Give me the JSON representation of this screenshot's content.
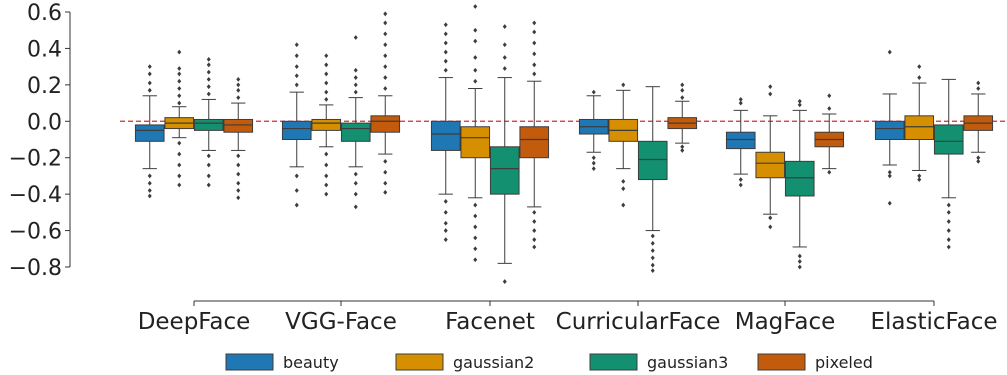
{
  "chart_data": {
    "type": "box",
    "categories": [
      "DeepFace",
      "VGG-Face",
      "Facenet",
      "CurricularFace",
      "MagFace",
      "ElasticFace"
    ],
    "ylim": [
      -0.8,
      0.6
    ],
    "yticks": [
      0.6,
      0.4,
      0.2,
      0.0,
      -0.2,
      -0.4,
      -0.6,
      -0.8
    ],
    "ytick_labels": [
      "0.6",
      "0.4",
      "0.2",
      "0.0",
      "−0.2",
      "−0.4",
      "−0.6",
      "−0.8"
    ],
    "reference_line": 0.0,
    "legend_position": "bottom",
    "series": [
      {
        "name": "beauty",
        "color": "#1f77b4",
        "boxes": [
          {
            "whislo": -0.26,
            "q1": -0.11,
            "med": -0.05,
            "q3": -0.02,
            "whishi": 0.14,
            "outliers": [
              0.17,
              0.21,
              0.26,
              0.3,
              -0.3,
              -0.34,
              -0.38,
              -0.41
            ]
          },
          {
            "whislo": -0.25,
            "q1": -0.1,
            "med": -0.04,
            "q3": 0.0,
            "whishi": 0.16,
            "outliers": [
              0.2,
              0.25,
              0.3,
              0.36,
              0.42,
              -0.3,
              -0.38,
              -0.46
            ]
          },
          {
            "whislo": -0.4,
            "q1": -0.16,
            "med": -0.07,
            "q3": 0.0,
            "whishi": 0.24,
            "outliers": [
              0.28,
              0.33,
              0.38,
              0.43,
              0.48,
              0.53,
              -0.44,
              -0.5,
              -0.56,
              -0.6,
              -0.65
            ]
          },
          {
            "whislo": -0.17,
            "q1": -0.07,
            "med": -0.03,
            "q3": 0.01,
            "whishi": 0.14,
            "outliers": [
              0.16,
              -0.2,
              -0.23,
              -0.26
            ]
          },
          {
            "whislo": -0.29,
            "q1": -0.15,
            "med": -0.1,
            "q3": -0.06,
            "whishi": 0.06,
            "outliers": [
              0.1,
              0.12,
              -0.32,
              -0.35
            ]
          },
          {
            "whislo": -0.24,
            "q1": -0.1,
            "med": -0.04,
            "q3": 0.0,
            "whishi": 0.15,
            "outliers": [
              0.38,
              -0.28,
              -0.3,
              -0.45
            ]
          }
        ]
      },
      {
        "name": "gaussian2",
        "color": "#d68f00",
        "boxes": [
          {
            "whislo": -0.09,
            "q1": -0.04,
            "med": -0.01,
            "q3": 0.02,
            "whishi": 0.08,
            "outliers": [
              0.1,
              0.14,
              0.18,
              0.22,
              0.26,
              0.29,
              0.38,
              -0.12,
              -0.18,
              -0.24,
              -0.3,
              -0.35
            ]
          },
          {
            "whislo": -0.14,
            "q1": -0.05,
            "med": -0.01,
            "q3": 0.01,
            "whishi": 0.09,
            "outliers": [
              0.12,
              0.16,
              0.21,
              0.26,
              0.31,
              0.36,
              -0.18,
              -0.24,
              -0.3,
              -0.35,
              -0.4
            ]
          },
          {
            "whislo": -0.42,
            "q1": -0.2,
            "med": -0.09,
            "q3": -0.03,
            "whishi": 0.18,
            "outliers": [
              0.22,
              0.28,
              0.35,
              0.44,
              0.5,
              0.63,
              -0.46,
              -0.52,
              -0.58,
              -0.64,
              -0.7,
              -0.76
            ]
          },
          {
            "whislo": -0.26,
            "q1": -0.11,
            "med": -0.05,
            "q3": 0.01,
            "whishi": 0.17,
            "outliers": [
              0.2,
              -0.33,
              -0.37,
              -0.46
            ]
          },
          {
            "whislo": -0.51,
            "q1": -0.31,
            "med": -0.23,
            "q3": -0.17,
            "whishi": 0.03,
            "outliers": [
              0.15,
              0.19,
              -0.53,
              -0.58
            ]
          },
          {
            "whislo": -0.27,
            "q1": -0.1,
            "med": -0.03,
            "q3": 0.03,
            "whishi": 0.21,
            "outliers": [
              0.24,
              0.3,
              -0.3,
              -0.32
            ]
          }
        ]
      },
      {
        "name": "gaussian3",
        "color": "#12906f",
        "boxes": [
          {
            "whislo": -0.16,
            "q1": -0.05,
            "med": -0.01,
            "q3": 0.01,
            "whishi": 0.12,
            "outliers": [
              0.15,
              0.19,
              0.23,
              0.27,
              0.31,
              0.34,
              -0.19,
              -0.24,
              -0.3,
              -0.35
            ]
          },
          {
            "whislo": -0.25,
            "q1": -0.11,
            "med": -0.04,
            "q3": -0.01,
            "whishi": 0.13,
            "outliers": [
              0.16,
              0.2,
              0.24,
              0.28,
              0.46,
              -0.29,
              -0.34,
              -0.4,
              -0.47
            ]
          },
          {
            "whislo": -0.78,
            "q1": -0.4,
            "med": -0.26,
            "q3": -0.14,
            "whishi": 0.24,
            "outliers": [
              0.29,
              0.35,
              0.42,
              0.52,
              -0.88
            ]
          },
          {
            "whislo": -0.6,
            "q1": -0.32,
            "med": -0.21,
            "q3": -0.11,
            "whishi": 0.19,
            "outliers": [
              -0.63,
              -0.67,
              -0.71,
              -0.75,
              -0.79,
              -0.82
            ]
          },
          {
            "whislo": -0.69,
            "q1": -0.41,
            "med": -0.31,
            "q3": -0.22,
            "whishi": 0.06,
            "outliers": [
              0.09,
              0.11,
              -0.74,
              -0.77,
              -0.8
            ]
          },
          {
            "whislo": -0.42,
            "q1": -0.18,
            "med": -0.11,
            "q3": -0.02,
            "whishi": 0.23,
            "outliers": [
              -0.46,
              -0.5,
              -0.55,
              -0.6,
              -0.65,
              -0.69
            ]
          }
        ]
      },
      {
        "name": "pixeled",
        "color": "#c25b0b",
        "boxes": [
          {
            "whislo": -0.16,
            "q1": -0.06,
            "med": -0.02,
            "q3": 0.01,
            "whishi": 0.1,
            "outliers": [
              0.13,
              0.17,
              0.2,
              0.23,
              -0.19,
              -0.24,
              -0.29,
              -0.34,
              -0.38,
              -0.42
            ]
          },
          {
            "whislo": -0.18,
            "q1": -0.06,
            "med": 0.0,
            "q3": 0.03,
            "whishi": 0.14,
            "outliers": [
              0.18,
              0.24,
              0.3,
              0.36,
              0.42,
              0.48,
              0.54,
              0.59,
              -0.22,
              -0.28,
              -0.34,
              -0.39
            ]
          },
          {
            "whislo": -0.47,
            "q1": -0.2,
            "med": -0.1,
            "q3": -0.03,
            "whishi": 0.22,
            "outliers": [
              0.26,
              0.31,
              0.37,
              0.43,
              0.49,
              0.54,
              -0.5,
              -0.55,
              -0.6,
              -0.65,
              -0.69
            ]
          },
          {
            "whislo": -0.12,
            "q1": -0.04,
            "med": -0.01,
            "q3": 0.02,
            "whishi": 0.11,
            "outliers": [
              0.13,
              0.17,
              0.2,
              -0.14,
              -0.16
            ]
          },
          {
            "whislo": -0.26,
            "q1": -0.14,
            "med": -0.1,
            "q3": -0.06,
            "whishi": 0.04,
            "outliers": [
              0.07,
              0.14,
              -0.28
            ]
          },
          {
            "whislo": -0.17,
            "q1": -0.05,
            "med": -0.01,
            "q3": 0.03,
            "whishi": 0.15,
            "outliers": [
              0.18,
              0.21,
              -0.2,
              -0.22
            ]
          }
        ]
      }
    ]
  }
}
